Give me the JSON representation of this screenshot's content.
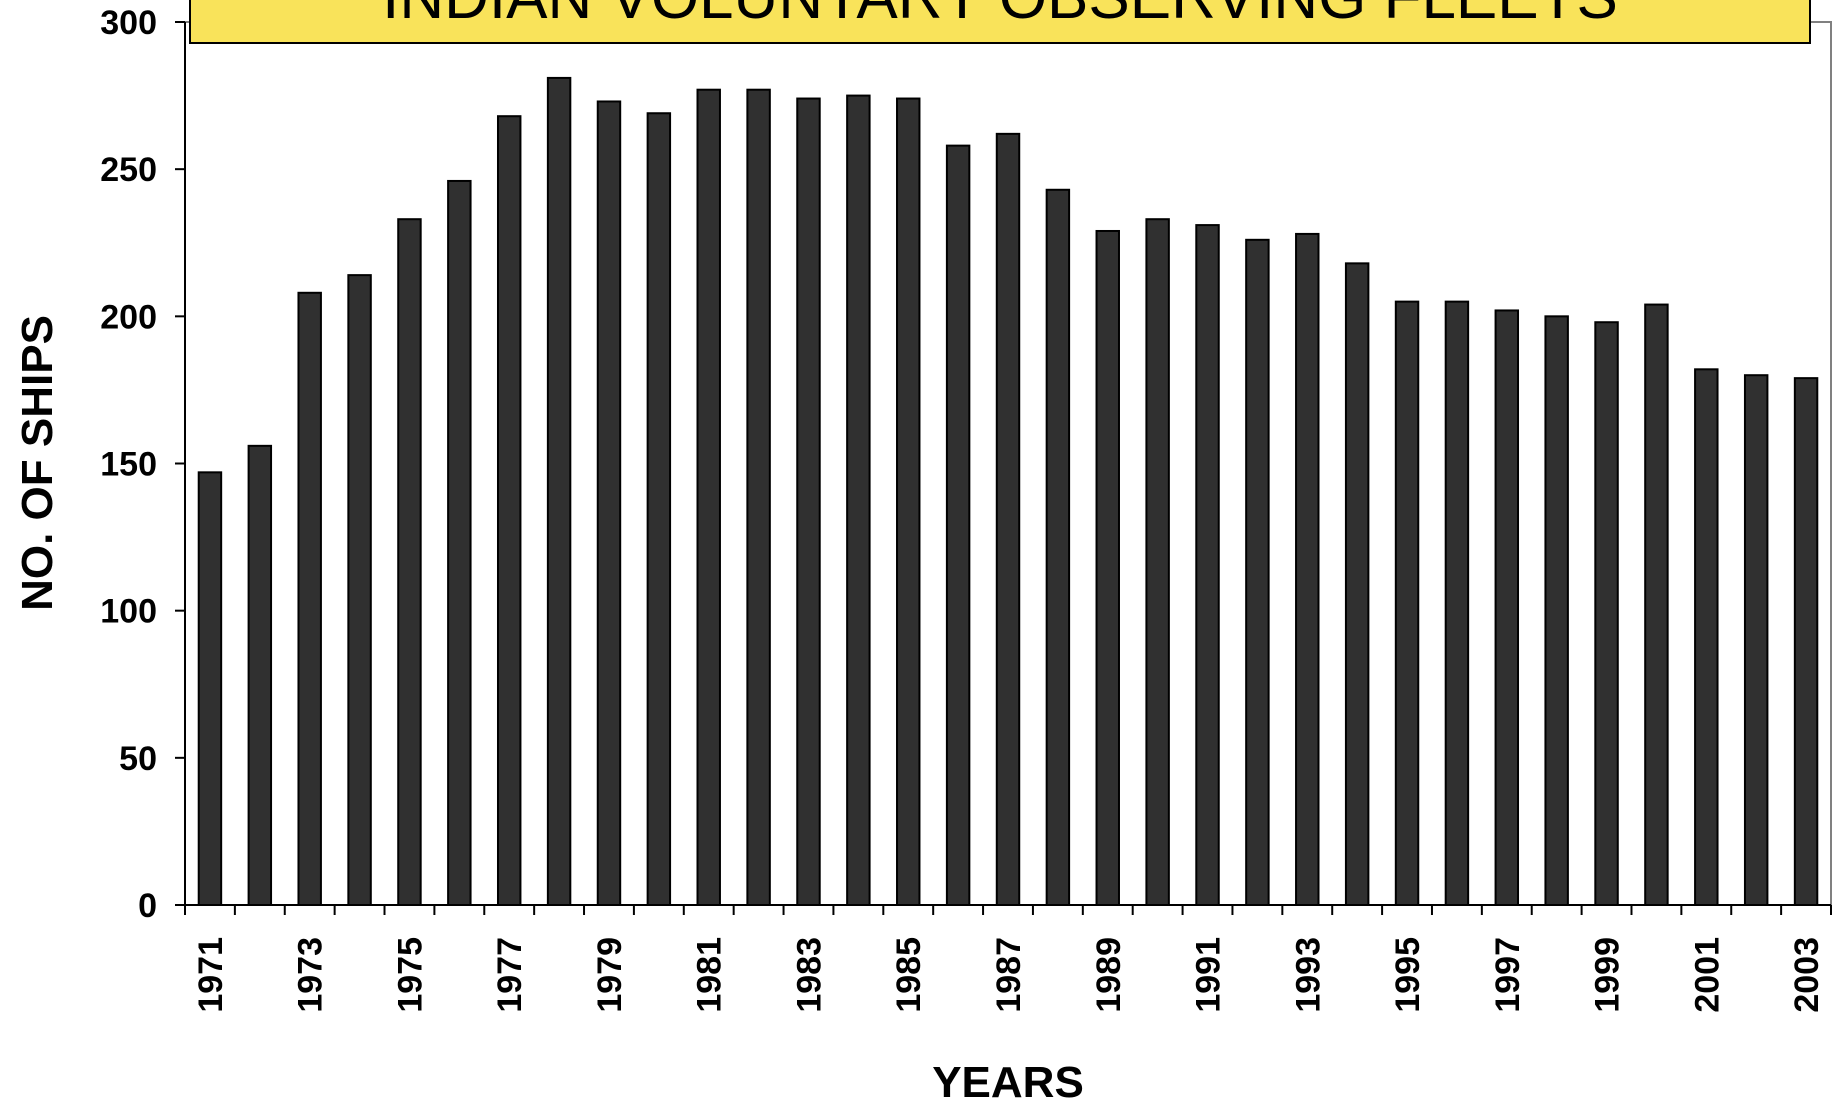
{
  "chart_data": {
    "type": "bar",
    "title": "INDIAN VOLUNTARY OBSERVING FLEETS",
    "xlabel": "YEARS",
    "ylabel": "NO. OF SHIPS",
    "ylim": [
      0,
      300
    ],
    "yticks": [
      0,
      50,
      100,
      150,
      200,
      250,
      300
    ],
    "grid": false,
    "legend": "none",
    "x_tick_labels": [
      "1971",
      "1973",
      "1975",
      "1977",
      "1979",
      "1981",
      "1983",
      "1985",
      "1987",
      "1989",
      "1991",
      "1993",
      "1995",
      "1997",
      "1999",
      "2001",
      "2003"
    ],
    "categories": [
      "1971",
      "1972",
      "1973",
      "1974",
      "1975",
      "1976",
      "1977",
      "1978",
      "1979",
      "1980",
      "1981",
      "1982",
      "1983",
      "1984",
      "1985",
      "1986",
      "1987",
      "1988",
      "1989",
      "1990",
      "1991",
      "1992",
      "1993",
      "1994",
      "1995",
      "1996",
      "1997",
      "1998",
      "1999",
      "2000",
      "2001",
      "2002",
      "2003"
    ],
    "values": [
      147,
      156,
      208,
      214,
      233,
      246,
      268,
      281,
      273,
      269,
      277,
      277,
      274,
      275,
      274,
      258,
      262,
      243,
      229,
      233,
      231,
      226,
      228,
      218,
      205,
      205,
      202,
      200,
      198,
      204,
      182,
      180,
      179
    ],
    "colors": {
      "bar": "#303030",
      "bar_edge": "#000000",
      "title_box": "#F9E35A"
    }
  }
}
